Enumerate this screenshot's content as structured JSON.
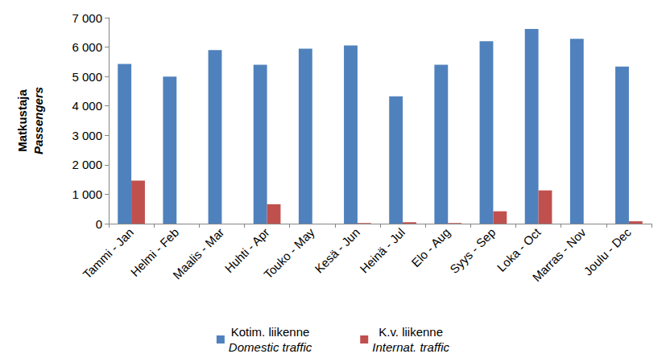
{
  "chart_data": {
    "type": "bar",
    "y_label": "Matkustaja\nPassengers",
    "categories": [
      "Tammi - Jan",
      "Helmi - Feb",
      "Maalis - Mar",
      "Huhti - Apr",
      "Touko - May",
      "Kesä - Jun",
      "Heinä - Jul",
      "Elo - Aug",
      "Syys - Sep",
      "Loka - Oct",
      "Marras - Nov",
      "Joulu - Dec"
    ],
    "series": [
      {
        "name": "Kotim. liikenne\nDomestic traffic",
        "color": "#4f81bd",
        "values": [
          5430,
          5000,
          5900,
          5400,
          5950,
          6060,
          4330,
          5400,
          6200,
          6620,
          6280,
          5340
        ]
      },
      {
        "name": "K.v. liikenne\nInternat. traffic",
        "color": "#c0504d",
        "values": [
          1460,
          0,
          0,
          660,
          0,
          20,
          50,
          20,
          420,
          1130,
          0,
          80
        ]
      }
    ],
    "ylim": [
      0,
      7000
    ],
    "yticks": [
      0,
      {
        "value": 1000,
        "label": "1 000"
      },
      {
        "value": 2000,
        "label": "2 000"
      },
      {
        "value": 3000,
        "label": "3 000"
      },
      {
        "value": 4000,
        "label": "4 000"
      },
      {
        "value": 5000,
        "label": "5 000"
      },
      {
        "value": 6000,
        "label": "6 000"
      },
      {
        "value": 7000,
        "label": "7 000"
      }
    ],
    "grid": false,
    "legend": "bottom"
  }
}
